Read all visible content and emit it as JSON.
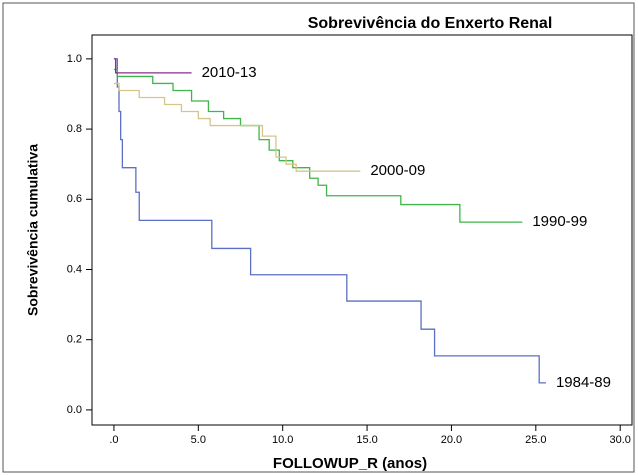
{
  "chart_data": {
    "type": "step",
    "title": "Sobrevivência do Enxerto Renal",
    "x_label": "FOLLOWUP_R (anos)",
    "y_label": "Sobrevivência cumulativa",
    "xlim": [
      -1.3,
      30.7
    ],
    "ylim": [
      -0.043,
      1.068
    ],
    "xticks": [
      {
        "value": 0,
        "label": ".0"
      },
      {
        "value": 5,
        "label": "5.0"
      },
      {
        "value": 10,
        "label": "10.0"
      },
      {
        "value": 15,
        "label": "15.0"
      },
      {
        "value": 20,
        "label": "20.0"
      },
      {
        "value": 25,
        "label": "25.0"
      },
      {
        "value": 30,
        "label": "30.0"
      }
    ],
    "yticks": [
      {
        "value": 0,
        "label": "0.0"
      },
      0.2,
      0.4,
      0.6,
      0.8,
      {
        "value": 1,
        "label": "1.0"
      }
    ],
    "series": [
      {
        "name": "1984-89",
        "color": "#5b6fc4",
        "x": [
          0,
          0.2,
          0.3,
          0.4,
          0.5,
          1.3,
          1.5,
          5.8,
          8.1,
          13.8,
          18.2,
          19.0,
          25.2,
          25.6
        ],
        "values": [
          1.0,
          0.92,
          0.85,
          0.77,
          0.69,
          0.62,
          0.54,
          0.46,
          0.385,
          0.31,
          0.23,
          0.154,
          0.077,
          0.077
        ]
      },
      {
        "name": "1990-99",
        "color": "#3fb54a",
        "x": [
          0,
          0.2,
          2.3,
          3.5,
          4.6,
          5.6,
          6.5,
          7.5,
          8.6,
          9.2,
          9.8,
          10.6,
          11.6,
          12.1,
          12.6,
          17.0,
          20.5,
          24.2
        ],
        "values": [
          0.97,
          0.95,
          0.93,
          0.91,
          0.88,
          0.85,
          0.83,
          0.81,
          0.77,
          0.74,
          0.71,
          0.69,
          0.66,
          0.64,
          0.61,
          0.585,
          0.535,
          0.535
        ]
      },
      {
        "name": "2000-09",
        "color": "#d6c58a",
        "x": [
          0,
          0.3,
          1.5,
          3.0,
          4.0,
          5.0,
          5.7,
          8.8,
          9.6,
          10.2,
          10.8,
          14.6
        ],
        "values": [
          0.93,
          0.91,
          0.89,
          0.87,
          0.85,
          0.83,
          0.81,
          0.78,
          0.72,
          0.7,
          0.68,
          0.68
        ]
      },
      {
        "name": "2010-13",
        "color": "#8e2a8e",
        "x": [
          0,
          0.1,
          4.6
        ],
        "values": [
          1.0,
          0.96,
          0.96
        ]
      }
    ]
  }
}
